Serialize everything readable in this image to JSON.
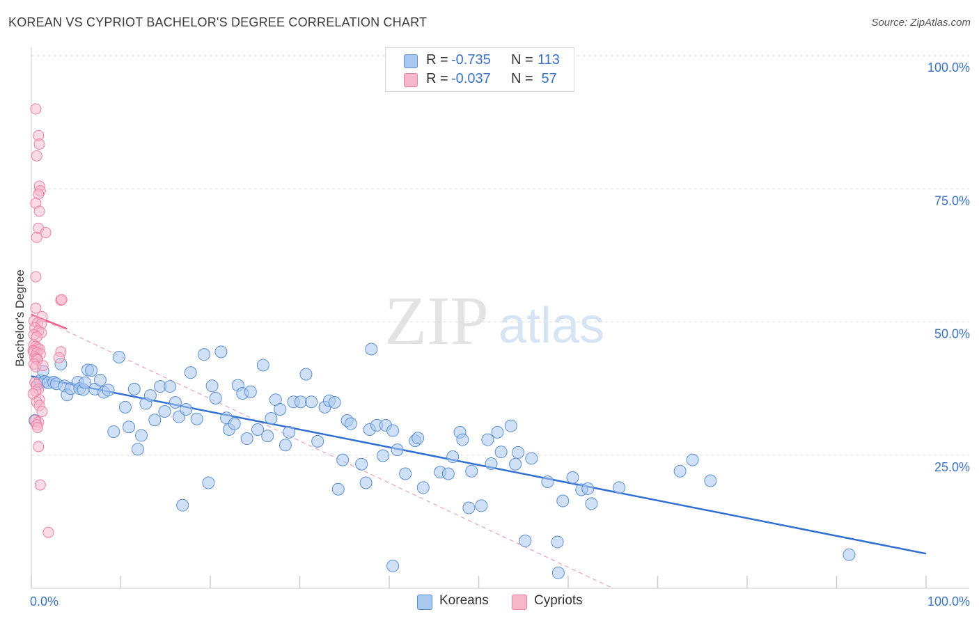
{
  "title": "KOREAN VS CYPRIOT BACHELOR'S DEGREE CORRELATION CHART",
  "source": "Source: ZipAtlas.com",
  "watermark": {
    "part1": "ZIP",
    "part2": "atlas"
  },
  "legend": {
    "rows": [
      {
        "r_label": "R =",
        "r_value": "-0.735",
        "n_label": "N =",
        "n_value": "113",
        "color": "#a9c8f0"
      },
      {
        "r_label": "R =",
        "r_value": "-0.037",
        "n_label": "N =",
        "n_value": " 57",
        "color": "#f7b8cc"
      }
    ]
  },
  "bottom_legend": {
    "korean": "Koreans",
    "cypriot": "Cypriots"
  },
  "colors": {
    "korean_fill": "#a9c8f0",
    "korean_stroke": "#5b8fd6",
    "korean_line": "#2f6fd1",
    "cypriot_fill": "#f7b8cc",
    "cypriot_stroke": "#ec7fa2",
    "cypriot_line": "#e8628c",
    "axis_text": "#3a72c4",
    "grid": "#dddddd"
  },
  "chart_data": {
    "type": "scatter",
    "title": "KOREAN VS CYPRIOT BACHELOR'S DEGREE CORRELATION CHART",
    "xlabel": "",
    "ylabel": "Bachelor's Degree",
    "xlim": [
      0,
      100
    ],
    "ylim": [
      0,
      100
    ],
    "x_tick_labels": [
      {
        "value": 0,
        "label": "0.0%"
      },
      {
        "value": 100,
        "label": "100.0%"
      }
    ],
    "y_tick_labels": [
      {
        "value": 25,
        "label": "25.0%"
      },
      {
        "value": 50,
        "label": "50.0%"
      },
      {
        "value": 75,
        "label": "75.0%"
      },
      {
        "value": 100,
        "label": "100.0%"
      }
    ],
    "series": [
      {
        "name": "Koreans",
        "r": -0.735,
        "n": 113,
        "trend": {
          "x": [
            0,
            100
          ],
          "y": [
            39.8,
            6.5
          ]
        },
        "points": [
          [
            0.4,
            31.5
          ],
          [
            0.8,
            38.4
          ],
          [
            1,
            39
          ],
          [
            1.3,
            40.8
          ],
          [
            1.5,
            38.8
          ],
          [
            1.9,
            38.6
          ],
          [
            2.5,
            38.7
          ],
          [
            2.8,
            38.4
          ],
          [
            3.3,
            42.1
          ],
          [
            3.7,
            38.0
          ],
          [
            4,
            36.3
          ],
          [
            4.4,
            37.5
          ],
          [
            5.2,
            38.7
          ],
          [
            5.4,
            37.5
          ],
          [
            5.8,
            37.3
          ],
          [
            6,
            38.6
          ],
          [
            6.3,
            41
          ],
          [
            6.7,
            40.9
          ],
          [
            7.1,
            37.4
          ],
          [
            7.7,
            39.1
          ],
          [
            8.1,
            36.8
          ],
          [
            8.6,
            37.2
          ],
          [
            9.2,
            29.4
          ],
          [
            9.8,
            43.4
          ],
          [
            10.5,
            34
          ],
          [
            10.9,
            30.3
          ],
          [
            11.5,
            37.4
          ],
          [
            11.9,
            26.1
          ],
          [
            12.3,
            28.7
          ],
          [
            12.8,
            34.7
          ],
          [
            13.3,
            36.2
          ],
          [
            13.8,
            31.6
          ],
          [
            14.4,
            37.9
          ],
          [
            14.9,
            33.2
          ],
          [
            15.5,
            37.9
          ],
          [
            16.1,
            34.9
          ],
          [
            16.5,
            32.2
          ],
          [
            16.9,
            15.6
          ],
          [
            17.3,
            33.6
          ],
          [
            17.8,
            40.5
          ],
          [
            18.5,
            31.8
          ],
          [
            19.3,
            43.9
          ],
          [
            19.8,
            19.8
          ],
          [
            20.2,
            38
          ],
          [
            20.6,
            35.7
          ],
          [
            21.2,
            44.4
          ],
          [
            21.8,
            32
          ],
          [
            22.1,
            29.8
          ],
          [
            22.7,
            30.9
          ],
          [
            23.1,
            38.1
          ],
          [
            23.6,
            36.6
          ],
          [
            24.1,
            28.1
          ],
          [
            24.5,
            36.9
          ],
          [
            25.3,
            29.8
          ],
          [
            25.9,
            41.9
          ],
          [
            26.4,
            28.6
          ],
          [
            26.8,
            31.9
          ],
          [
            27.3,
            35.4
          ],
          [
            27.8,
            33.6
          ],
          [
            28.4,
            26.9
          ],
          [
            28.8,
            29.3
          ],
          [
            29.3,
            35
          ],
          [
            30.1,
            35
          ],
          [
            30.7,
            40.2
          ],
          [
            31.3,
            35
          ],
          [
            32,
            27.6
          ],
          [
            32.8,
            34
          ],
          [
            33.3,
            35.2
          ],
          [
            33.9,
            34.9
          ],
          [
            34.3,
            18.6
          ],
          [
            34.8,
            24.1
          ],
          [
            35.3,
            31.5
          ],
          [
            35.7,
            30.9
          ],
          [
            36.9,
            23.3
          ],
          [
            37.4,
            19.8
          ],
          [
            37.8,
            29.8
          ],
          [
            38,
            44.9
          ],
          [
            38.6,
            30.6
          ],
          [
            39.3,
            24.9
          ],
          [
            39.6,
            30.6
          ],
          [
            40.4,
            29.6
          ],
          [
            40.4,
            4.2
          ],
          [
            40.9,
            26
          ],
          [
            41.8,
            21.5
          ],
          [
            42.9,
            27.7
          ],
          [
            43.2,
            28.2
          ],
          [
            43.8,
            18.9
          ],
          [
            45.7,
            21.8
          ],
          [
            46.6,
            21.5
          ],
          [
            47.1,
            24.7
          ],
          [
            47.9,
            29.3
          ],
          [
            48.2,
            27.9
          ],
          [
            48.9,
            15.1
          ],
          [
            49.2,
            22
          ],
          [
            50.3,
            15.5
          ],
          [
            51,
            27.9
          ],
          [
            51.4,
            23.4
          ],
          [
            52.1,
            29.3
          ],
          [
            52.5,
            25.6
          ],
          [
            53.6,
            30.5
          ],
          [
            54.1,
            23.3
          ],
          [
            54.4,
            25.5
          ],
          [
            55.2,
            8.9
          ],
          [
            55.9,
            24.4
          ],
          [
            57.7,
            20
          ],
          [
            58.8,
            8.7
          ],
          [
            58.9,
            2.9
          ],
          [
            59.4,
            16.4
          ],
          [
            60.5,
            20.8
          ],
          [
            61.5,
            18.5
          ],
          [
            62.2,
            18.7
          ],
          [
            62.6,
            15.9
          ],
          [
            65.7,
            18.9
          ],
          [
            72.5,
            22
          ],
          [
            73.9,
            24.1
          ],
          [
            75.9,
            20.2
          ],
          [
            91.4,
            6.3
          ]
        ]
      },
      {
        "name": "Cypriots",
        "r": -0.037,
        "n": 57,
        "trend": {
          "x": [
            0,
            4
          ],
          "y": [
            51.4,
            48.7
          ]
        },
        "trend_extended": {
          "x": [
            0,
            65
          ],
          "y": [
            51.4,
            0
          ]
        },
        "points": [
          [
            0.5,
            90
          ],
          [
            0.8,
            85
          ],
          [
            0.9,
            83.4
          ],
          [
            0.6,
            81.2
          ],
          [
            0.9,
            75.5
          ],
          [
            1,
            74.6
          ],
          [
            0.8,
            74
          ],
          [
            0.5,
            72.3
          ],
          [
            0.9,
            70.8
          ],
          [
            0.8,
            67.6
          ],
          [
            1.6,
            66.8
          ],
          [
            0.6,
            65.9
          ],
          [
            0.5,
            58.5
          ],
          [
            3.3,
            54.1
          ],
          [
            3.4,
            54.2
          ],
          [
            0.5,
            52.6
          ],
          [
            1.2,
            51
          ],
          [
            0.3,
            50.2
          ],
          [
            0.7,
            49.8
          ],
          [
            1.1,
            49.6
          ],
          [
            0.4,
            48.9
          ],
          [
            0.8,
            48.3
          ],
          [
            1.1,
            48
          ],
          [
            0.3,
            47.6
          ],
          [
            0.6,
            47.2
          ],
          [
            0.3,
            45.7
          ],
          [
            0.5,
            45.4
          ],
          [
            0.7,
            45.1
          ],
          [
            0.9,
            44.9
          ],
          [
            0.2,
            44.6
          ],
          [
            0.3,
            44.4
          ],
          [
            0.6,
            44.2
          ],
          [
            1,
            44
          ],
          [
            3.3,
            44.4
          ],
          [
            0.4,
            43.4
          ],
          [
            0.6,
            43.1
          ],
          [
            0.7,
            42.9
          ],
          [
            3.1,
            43.3
          ],
          [
            0.3,
            42.1
          ],
          [
            0.5,
            41.6
          ],
          [
            1.3,
            41.8
          ],
          [
            0.4,
            38.6
          ],
          [
            0.6,
            38.2
          ],
          [
            0.8,
            37.4
          ],
          [
            0.5,
            37
          ],
          [
            0.2,
            36.5
          ],
          [
            0.9,
            35.4
          ],
          [
            0.6,
            35
          ],
          [
            0.9,
            34.3
          ],
          [
            1.2,
            33.2
          ],
          [
            0.4,
            31.5
          ],
          [
            0.8,
            31.2
          ],
          [
            0.6,
            30.7
          ],
          [
            0.7,
            30.2
          ],
          [
            0.8,
            26.6
          ],
          [
            1,
            19.4
          ],
          [
            1.9,
            10.5
          ]
        ]
      }
    ]
  }
}
